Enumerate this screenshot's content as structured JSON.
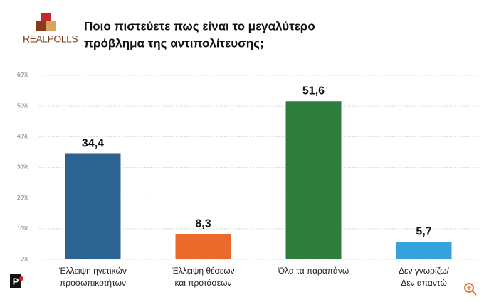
{
  "logo": "REALPOLLS",
  "chart_data": {
    "type": "bar",
    "title": [
      "Ποιο πιστεύετε πως είναι το μεγαλύτερο",
      "πρόβλημα της αντιπολίτευσης;"
    ],
    "categories": [
      [
        "Έλλειψη ηγετικών",
        "προσωπικοτήτων"
      ],
      [
        "Έλλειψη θέσεων",
        "και προτάσεων"
      ],
      [
        "Όλα τα παραπάνω"
      ],
      [
        "Δεν γνωρίζω/",
        "Δεν απαντώ"
      ]
    ],
    "values": [
      34.4,
      8.3,
      51.6,
      5.7
    ],
    "value_labels": [
      "34,4",
      "8,3",
      "51,6",
      "5,7"
    ],
    "colors": [
      "#2c6390",
      "#ea6a2b",
      "#2f7d3d",
      "#36a2dc"
    ],
    "ylim": [
      0,
      60
    ],
    "yticks": [
      {
        "value": 0,
        "label": "0%"
      },
      {
        "value": 10,
        "label": "10%"
      },
      {
        "value": 20,
        "label": "20%"
      },
      {
        "value": 30,
        "label": "30%"
      },
      {
        "value": 40,
        "label": "40%"
      },
      {
        "value": 50,
        "label": "50%"
      },
      {
        "value": 60,
        "label": "60%"
      }
    ],
    "grid": true
  }
}
